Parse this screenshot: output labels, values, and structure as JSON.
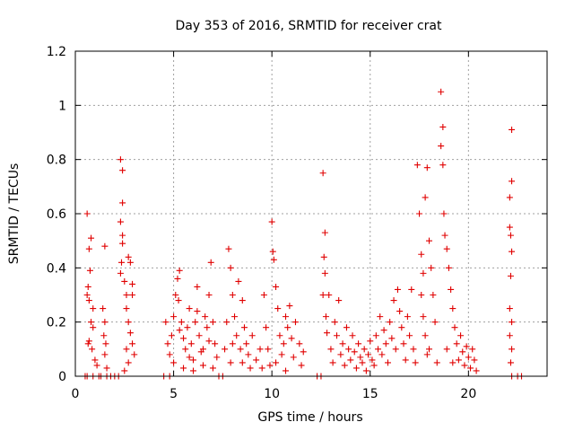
{
  "chart_data": {
    "type": "scatter",
    "title": "Day 353 of 2016, SRMTID for receiver crat",
    "xlabel": "GPS time / hours",
    "ylabel": "SRMTID / TECUs",
    "xlim": [
      0,
      24
    ],
    "ylim": [
      0,
      1.2
    ],
    "xticks": [
      0,
      5,
      10,
      15,
      20
    ],
    "xtick_labels": [
      "0",
      "5",
      "10",
      "15",
      "20"
    ],
    "yticks": [
      0,
      0.2,
      0.4,
      0.6,
      0.8,
      1.0,
      1.2
    ],
    "ytick_labels": [
      "0",
      "0.2",
      "0.4",
      "0.6",
      "0.8",
      "1",
      "1.2"
    ],
    "grid": true,
    "marker": "+",
    "color": "#e00000",
    "series": [
      {
        "name": "SRMTID",
        "points": [
          [
            0.5,
            0
          ],
          [
            0.6,
            0
          ],
          [
            0.9,
            0
          ],
          [
            1.2,
            0
          ],
          [
            1.3,
            0
          ],
          [
            1.6,
            0
          ],
          [
            1.8,
            0
          ],
          [
            2.0,
            0
          ],
          [
            2.2,
            0
          ],
          [
            4.5,
            0
          ],
          [
            4.8,
            0
          ],
          [
            7.3,
            0
          ],
          [
            7.5,
            0
          ],
          [
            12.3,
            0
          ],
          [
            12.5,
            0
          ],
          [
            22.2,
            0
          ],
          [
            22.5,
            0
          ],
          [
            22.7,
            0
          ],
          [
            0.6,
            0.6
          ],
          [
            0.7,
            0.47
          ],
          [
            0.8,
            0.51
          ],
          [
            0.75,
            0.39
          ],
          [
            0.65,
            0.33
          ],
          [
            0.7,
            0.28
          ],
          [
            0.6,
            0.3
          ],
          [
            0.8,
            0.2
          ],
          [
            0.65,
            0.12
          ],
          [
            0.7,
            0.13
          ],
          [
            0.9,
            0.25
          ],
          [
            0.9,
            0.18
          ],
          [
            0.85,
            0.1
          ],
          [
            1.0,
            0.06
          ],
          [
            1.1,
            0.04
          ],
          [
            1.5,
            0.48
          ],
          [
            1.4,
            0.25
          ],
          [
            1.5,
            0.2
          ],
          [
            1.45,
            0.15
          ],
          [
            1.55,
            0.12
          ],
          [
            1.5,
            0.08
          ],
          [
            1.6,
            0.03
          ],
          [
            2.3,
            0.8
          ],
          [
            2.4,
            0.76
          ],
          [
            2.4,
            0.64
          ],
          [
            2.3,
            0.57
          ],
          [
            2.4,
            0.52
          ],
          [
            2.4,
            0.49
          ],
          [
            2.35,
            0.42
          ],
          [
            2.3,
            0.38
          ],
          [
            2.5,
            0.35
          ],
          [
            2.6,
            0.3
          ],
          [
            2.7,
            0.44
          ],
          [
            2.8,
            0.42
          ],
          [
            2.9,
            0.34
          ],
          [
            2.9,
            0.3
          ],
          [
            2.6,
            0.25
          ],
          [
            2.7,
            0.2
          ],
          [
            2.8,
            0.16
          ],
          [
            2.9,
            0.12
          ],
          [
            2.6,
            0.1
          ],
          [
            2.7,
            0.05
          ],
          [
            3.0,
            0.08
          ],
          [
            2.5,
            0.02
          ],
          [
            4.6,
            0.2
          ],
          [
            4.7,
            0.12
          ],
          [
            4.8,
            0.08
          ],
          [
            4.9,
            0.15
          ],
          [
            5.0,
            0.22
          ],
          [
            5.1,
            0.3
          ],
          [
            5.2,
            0.36
          ],
          [
            5.3,
            0.39
          ],
          [
            5.25,
            0.28
          ],
          [
            5.4,
            0.2
          ],
          [
            5.5,
            0.14
          ],
          [
            5.6,
            0.1
          ],
          [
            5.7,
            0.18
          ],
          [
            5.8,
            0.25
          ],
          [
            5.9,
            0.12
          ],
          [
            6.0,
            0.06
          ],
          [
            6.1,
            0.2
          ],
          [
            6.2,
            0.33
          ],
          [
            6.3,
            0.15
          ],
          [
            6.4,
            0.09
          ],
          [
            6.5,
            0.04
          ],
          [
            6.6,
            0.22
          ],
          [
            6.7,
            0.18
          ],
          [
            6.8,
            0.3
          ],
          [
            6.9,
            0.42
          ],
          [
            7.0,
            0.2
          ],
          [
            7.1,
            0.12
          ],
          [
            7.2,
            0.07
          ],
          [
            5.0,
            0.05
          ],
          [
            5.5,
            0.03
          ],
          [
            6.0,
            0.02
          ],
          [
            6.5,
            0.1
          ],
          [
            7.0,
            0.03
          ],
          [
            5.3,
            0.17
          ],
          [
            5.8,
            0.07
          ],
          [
            6.2,
            0.24
          ],
          [
            6.8,
            0.13
          ],
          [
            7.6,
            0.1
          ],
          [
            7.7,
            0.2
          ],
          [
            7.8,
            0.47
          ],
          [
            7.9,
            0.4
          ],
          [
            8.0,
            0.3
          ],
          [
            8.1,
            0.22
          ],
          [
            8.2,
            0.15
          ],
          [
            8.3,
            0.35
          ],
          [
            8.4,
            0.1
          ],
          [
            8.5,
            0.05
          ],
          [
            8.6,
            0.18
          ],
          [
            8.7,
            0.12
          ],
          [
            8.8,
            0.08
          ],
          [
            8.9,
            0.03
          ],
          [
            9.0,
            0.15
          ],
          [
            9.2,
            0.06
          ],
          [
            9.4,
            0.1
          ],
          [
            9.5,
            0.03
          ],
          [
            8.0,
            0.12
          ],
          [
            8.5,
            0.28
          ],
          [
            7.9,
            0.05
          ],
          [
            9.6,
            0.3
          ],
          [
            9.7,
            0.18
          ],
          [
            9.8,
            0.1
          ],
          [
            9.9,
            0.04
          ],
          [
            10.0,
            0.57
          ],
          [
            10.05,
            0.46
          ],
          [
            10.1,
            0.43
          ],
          [
            10.2,
            0.33
          ],
          [
            10.3,
            0.25
          ],
          [
            10.4,
            0.15
          ],
          [
            10.5,
            0.08
          ],
          [
            10.6,
            0.12
          ],
          [
            10.7,
            0.22
          ],
          [
            10.8,
            0.18
          ],
          [
            10.9,
            0.26
          ],
          [
            11.0,
            0.14
          ],
          [
            11.1,
            0.07
          ],
          [
            11.2,
            0.2
          ],
          [
            11.4,
            0.12
          ],
          [
            11.5,
            0.04
          ],
          [
            11.6,
            0.09
          ],
          [
            10.2,
            0.05
          ],
          [
            10.7,
            0.02
          ],
          [
            12.6,
            0.75
          ],
          [
            12.7,
            0.53
          ],
          [
            12.65,
            0.44
          ],
          [
            12.7,
            0.38
          ],
          [
            12.6,
            0.3
          ],
          [
            12.75,
            0.22
          ],
          [
            12.8,
            0.16
          ],
          [
            12.9,
            0.3
          ],
          [
            13.0,
            0.1
          ],
          [
            13.1,
            0.05
          ],
          [
            13.2,
            0.2
          ],
          [
            13.3,
            0.15
          ],
          [
            13.4,
            0.28
          ],
          [
            13.5,
            0.08
          ],
          [
            13.6,
            0.12
          ],
          [
            13.7,
            0.04
          ],
          [
            13.8,
            0.18
          ],
          [
            13.9,
            0.1
          ],
          [
            14.0,
            0.06
          ],
          [
            14.1,
            0.15
          ],
          [
            14.2,
            0.09
          ],
          [
            14.3,
            0.03
          ],
          [
            14.4,
            0.12
          ],
          [
            14.5,
            0.07
          ],
          [
            14.6,
            0.05
          ],
          [
            14.7,
            0.1
          ],
          [
            14.8,
            0.02
          ],
          [
            14.9,
            0.08
          ],
          [
            15.0,
            0.13
          ],
          [
            15.1,
            0.06
          ],
          [
            15.2,
            0.04
          ],
          [
            15.3,
            0.15
          ],
          [
            15.4,
            0.1
          ],
          [
            15.5,
            0.22
          ],
          [
            15.6,
            0.08
          ],
          [
            15.7,
            0.17
          ],
          [
            15.8,
            0.12
          ],
          [
            15.9,
            0.05
          ],
          [
            16.0,
            0.2
          ],
          [
            16.1,
            0.14
          ],
          [
            16.2,
            0.28
          ],
          [
            16.3,
            0.1
          ],
          [
            16.4,
            0.32
          ],
          [
            16.5,
            0.24
          ],
          [
            16.6,
            0.18
          ],
          [
            16.7,
            0.12
          ],
          [
            16.8,
            0.06
          ],
          [
            16.9,
            0.22
          ],
          [
            17.0,
            0.15
          ],
          [
            17.1,
            0.32
          ],
          [
            17.2,
            0.1
          ],
          [
            17.3,
            0.05
          ],
          [
            17.4,
            0.78
          ],
          [
            17.5,
            0.6
          ],
          [
            17.6,
            0.45
          ],
          [
            17.7,
            0.38
          ],
          [
            17.8,
            0.66
          ],
          [
            17.9,
            0.77
          ],
          [
            17.6,
            0.3
          ],
          [
            17.7,
            0.22
          ],
          [
            17.8,
            0.15
          ],
          [
            17.9,
            0.08
          ],
          [
            18.0,
            0.5
          ],
          [
            18.1,
            0.4
          ],
          [
            18.2,
            0.3
          ],
          [
            18.3,
            0.2
          ],
          [
            18.0,
            0.1
          ],
          [
            18.4,
            0.05
          ],
          [
            18.6,
            1.05
          ],
          [
            18.7,
            0.92
          ],
          [
            18.6,
            0.85
          ],
          [
            18.7,
            0.78
          ],
          [
            18.75,
            0.6
          ],
          [
            18.8,
            0.52
          ],
          [
            18.9,
            0.47
          ],
          [
            19.0,
            0.4
          ],
          [
            19.1,
            0.32
          ],
          [
            19.2,
            0.25
          ],
          [
            19.3,
            0.18
          ],
          [
            19.4,
            0.12
          ],
          [
            19.5,
            0.06
          ],
          [
            19.6,
            0.15
          ],
          [
            19.7,
            0.09
          ],
          [
            19.8,
            0.04
          ],
          [
            19.9,
            0.11
          ],
          [
            20.0,
            0.07
          ],
          [
            20.1,
            0.03
          ],
          [
            20.2,
            0.1
          ],
          [
            20.3,
            0.06
          ],
          [
            20.4,
            0.02
          ],
          [
            18.9,
            0.1
          ],
          [
            19.2,
            0.05
          ],
          [
            22.1,
            0.66
          ],
          [
            22.2,
            0.91
          ],
          [
            22.2,
            0.72
          ],
          [
            22.1,
            0.55
          ],
          [
            22.15,
            0.52
          ],
          [
            22.2,
            0.46
          ],
          [
            22.15,
            0.37
          ],
          [
            22.1,
            0.25
          ],
          [
            22.2,
            0.2
          ],
          [
            22.1,
            0.15
          ],
          [
            22.2,
            0.1
          ],
          [
            22.15,
            0.05
          ]
        ]
      }
    ]
  }
}
